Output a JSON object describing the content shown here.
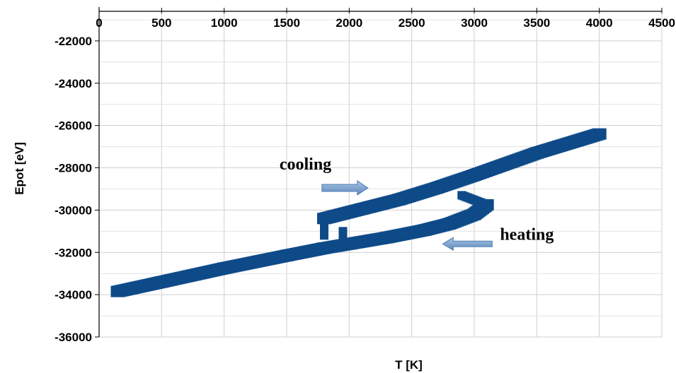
{
  "chart_data": {
    "type": "scatter",
    "title": "",
    "xlabel": "T [K]",
    "ylabel": "Epot [eV]",
    "xlim": [
      0,
      4500
    ],
    "ylim": [
      -36000,
      -20600
    ],
    "x_ticks": [
      "0",
      "500",
      "1000",
      "1500",
      "2000",
      "2500",
      "3000",
      "3500",
      "4000",
      "4500"
    ],
    "y_ticks": [
      "-22000",
      "-24000",
      "-26000",
      "-28000",
      "-30000",
      "-32000",
      "-34000",
      "-36000"
    ],
    "x_axis_position": "top",
    "grid": true,
    "legend": "none",
    "marker": "square",
    "color": "#0e4a88",
    "series": [
      {
        "segment": "heating",
        "x": [
          150,
          500,
          1000,
          1500,
          1800,
          2000,
          2300,
          2600,
          2800,
          3000,
          3100
        ],
        "y": [
          -33850,
          -33400,
          -32750,
          -32150,
          -31800,
          -31600,
          -31300,
          -30950,
          -30650,
          -30200,
          -29750
        ]
      },
      {
        "segment": "cooling",
        "x": [
          4000,
          3500,
          3000,
          2700,
          2400,
          2100,
          1800
        ],
        "y": [
          -26400,
          -27300,
          -28350,
          -28950,
          -29500,
          -29950,
          -30400
        ]
      }
    ],
    "annotations": [
      {
        "text": "cooling",
        "arrow": "right",
        "x": 2150,
        "y": -28950
      },
      {
        "text": "heating",
        "arrow": "left",
        "x": 3200,
        "y": -31600
      }
    ]
  }
}
